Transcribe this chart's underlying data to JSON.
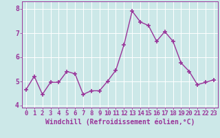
{
  "x": [
    0,
    1,
    2,
    3,
    4,
    5,
    6,
    7,
    8,
    9,
    10,
    11,
    12,
    13,
    14,
    15,
    16,
    17,
    18,
    19,
    20,
    21,
    22,
    23
  ],
  "y": [
    4.65,
    5.2,
    4.45,
    4.95,
    4.95,
    5.4,
    5.3,
    4.45,
    4.6,
    4.6,
    5.0,
    5.45,
    6.5,
    7.9,
    7.45,
    7.3,
    6.65,
    7.05,
    6.65,
    5.75,
    5.4,
    4.85,
    4.95,
    5.05
  ],
  "line_color": "#993399",
  "marker": "+",
  "marker_size": 4,
  "linewidth": 1.0,
  "xlabel": "Windchill (Refroidissement éolien,°C)",
  "ylabel": "",
  "ylim": [
    3.9,
    8.3
  ],
  "xlim": [
    -0.5,
    23.5
  ],
  "yticks": [
    4,
    5,
    6,
    7,
    8
  ],
  "xticks": [
    0,
    1,
    2,
    3,
    4,
    5,
    6,
    7,
    8,
    9,
    10,
    11,
    12,
    13,
    14,
    15,
    16,
    17,
    18,
    19,
    20,
    21,
    22,
    23
  ],
  "bg_color": "#cce8e8",
  "grid_color": "#ffffff",
  "tick_color": "#993399",
  "label_color": "#993399",
  "xlabel_fontsize": 7,
  "tick_fontsize": 6.5
}
